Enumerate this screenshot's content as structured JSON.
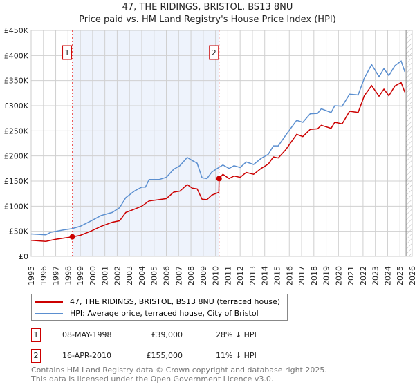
{
  "chart_data": {
    "type": "line",
    "title": "47, THE RIDINGS, BRISTOL, BS13 8NU",
    "subtitle": "Price paid vs. HM Land Registry's House Price Index (HPI)",
    "xlabel": "",
    "ylabel": "",
    "xlim": [
      1995,
      2026
    ],
    "ylim": [
      0,
      450000
    ],
    "x_ticks": [
      "1995",
      "1996",
      "1997",
      "1998",
      "1999",
      "2000",
      "2001",
      "2002",
      "2003",
      "2004",
      "2005",
      "2006",
      "2007",
      "2008",
      "2009",
      "2010",
      "2011",
      "2012",
      "2013",
      "2014",
      "2015",
      "2016",
      "2017",
      "2018",
      "2019",
      "2020",
      "2021",
      "2022",
      "2023",
      "2024",
      "2025",
      "2026"
    ],
    "y_ticks": [
      {
        "value": 0,
        "label": "£0"
      },
      {
        "value": 50000,
        "label": "£50K"
      },
      {
        "value": 100000,
        "label": "£100K"
      },
      {
        "value": 150000,
        "label": "£150K"
      },
      {
        "value": 200000,
        "label": "£200K"
      },
      {
        "value": 250000,
        "label": "£250K"
      },
      {
        "value": 300000,
        "label": "£300K"
      },
      {
        "value": 350000,
        "label": "£350K"
      },
      {
        "value": 400000,
        "label": "£400K"
      },
      {
        "value": 450000,
        "label": "£450K"
      }
    ],
    "grid": true,
    "shaded_range": [
      1998.35,
      2010.29
    ],
    "forecast_from": 2025.5,
    "series": [
      {
        "name": "47, THE RIDINGS, BRISTOL, BS13 8NU (terraced house)",
        "color": "#cc0000",
        "x": [
          1995,
          1996.2,
          1997,
          1998.35,
          1999,
          1999.9,
          2000.7,
          2001.6,
          2002.2,
          2002.7,
          2003.4,
          2004,
          2004.6,
          2005.4,
          2006,
          2006.6,
          2007.1,
          2007.7,
          2008.1,
          2008.5,
          2008.9,
          2009.3,
          2009.7,
          2010.27,
          2010.29,
          2010.6,
          2011.1,
          2011.5,
          2012,
          2012.5,
          2013.1,
          2013.7,
          2014.3,
          2014.7,
          2015.1,
          2015.7,
          2016.6,
          2017.1,
          2017.7,
          2018.3,
          2018.6,
          2019.4,
          2019.7,
          2020.3,
          2020.9,
          2021.6,
          2022.1,
          2022.7,
          2023.3,
          2023.7,
          2024.1,
          2024.6,
          2025.1,
          2025.4
        ],
        "y": [
          32000,
          30000,
          34000,
          39000,
          42000,
          50700,
          60000,
          68000,
          71000,
          87500,
          94000,
          100000,
          110500,
          113000,
          115000,
          128000,
          130000,
          143000,
          136000,
          134500,
          114000,
          113000,
          122000,
          127600,
          155000,
          163500,
          155000,
          160000,
          157500,
          167000,
          163500,
          175000,
          184000,
          198000,
          196000,
          212000,
          243000,
          238600,
          253000,
          254000,
          261000,
          255000,
          267000,
          264000,
          289000,
          286500,
          320000,
          340000,
          319000,
          333000,
          320000,
          339500,
          346000,
          327000
        ]
      },
      {
        "name": "HPI: Average price, terraced house, City of Bristol",
        "color": "#5b8fd0",
        "x": [
          1995,
          1996.2,
          1996.6,
          1997.7,
          1998.3,
          1999,
          1999.9,
          2000.7,
          2001.6,
          2002.2,
          2002.7,
          2003.4,
          2004,
          2004.3,
          2004.6,
          2005.4,
          2006,
          2006.6,
          2007.1,
          2007.7,
          2008.1,
          2008.5,
          2008.9,
          2009.3,
          2009.7,
          2010.2,
          2010.6,
          2011.1,
          2011.5,
          2012,
          2012.5,
          2013.1,
          2013.7,
          2014.3,
          2014.7,
          2015.1,
          2015.7,
          2016.6,
          2017.1,
          2017.7,
          2018.3,
          2018.6,
          2019.4,
          2019.7,
          2020.3,
          2020.9,
          2021.6,
          2022.1,
          2022.7,
          2023.3,
          2023.7,
          2024.1,
          2024.6,
          2025.1,
          2025.4
        ],
        "y": [
          44700,
          43000,
          48000,
          53000,
          55000,
          60000,
          71000,
          81500,
          87500,
          97000,
          117000,
          130000,
          138000,
          138000,
          153000,
          153000,
          157500,
          173600,
          180500,
          197000,
          191000,
          185600,
          156600,
          155000,
          168000,
          176000,
          182000,
          175000,
          180500,
          177000,
          188000,
          183000,
          195000,
          203600,
          220000,
          220000,
          241000,
          271000,
          267000,
          284000,
          284600,
          294000,
          286500,
          300000,
          299000,
          323000,
          321500,
          354700,
          382000,
          358000,
          374000,
          360000,
          380000,
          389000,
          367500
        ]
      }
    ],
    "markers": [
      {
        "label": "1",
        "x": 1998.35,
        "y": 39000
      },
      {
        "label": "2",
        "x": 2010.29,
        "y": 155000
      }
    ],
    "legend_position": "below"
  },
  "legend": {
    "property": "47, THE RIDINGS, BRISTOL, BS13 8NU (terraced house)",
    "hpi": "HPI: Average price, terraced house, City of Bristol"
  },
  "sales": [
    {
      "num": "1",
      "date": "08-MAY-1998",
      "price": "£39,000",
      "hpi": "28% ↓ HPI"
    },
    {
      "num": "2",
      "date": "16-APR-2010",
      "price": "£155,000",
      "hpi": "11% ↓ HPI"
    }
  ],
  "footer": {
    "line1": "Contains HM Land Registry data © Crown copyright and database right 2025.",
    "line2": "This data is licensed under the Open Government Licence v3.0."
  }
}
